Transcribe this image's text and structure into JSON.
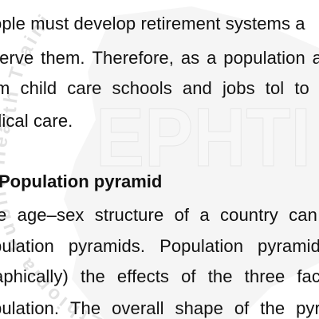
{
  "watermark": {
    "text": "EPHTI",
    "ring_text": "Ethiopia Public Health Training Initiative"
  },
  "paragraph1": {
    "line1": "ople must develop retirement systems a",
    "line2_words": [
      "serve",
      "them.",
      "Therefore,",
      "as",
      "a",
      "population",
      "a"
    ],
    "line3_words": [
      "m",
      "child",
      "care",
      "schools",
      "and",
      "jobs",
      "tol",
      "to"
    ],
    "line4": "dical care."
  },
  "section": {
    "heading": "Population pyramid"
  },
  "paragraph2": {
    "line1_words": [
      "e",
      "age–sex",
      "structure",
      "of",
      "a",
      "country",
      "can"
    ],
    "line2_words": [
      "pulation",
      "pyramids.",
      "Population",
      "pyramid"
    ],
    "line3_words": [
      "aphically)",
      "the",
      "effects",
      "of",
      "the",
      "three",
      "fac"
    ],
    "line4_words": [
      "pulation.",
      "The",
      "overall",
      "shape",
      "of",
      "the",
      "pyr"
    ]
  }
}
